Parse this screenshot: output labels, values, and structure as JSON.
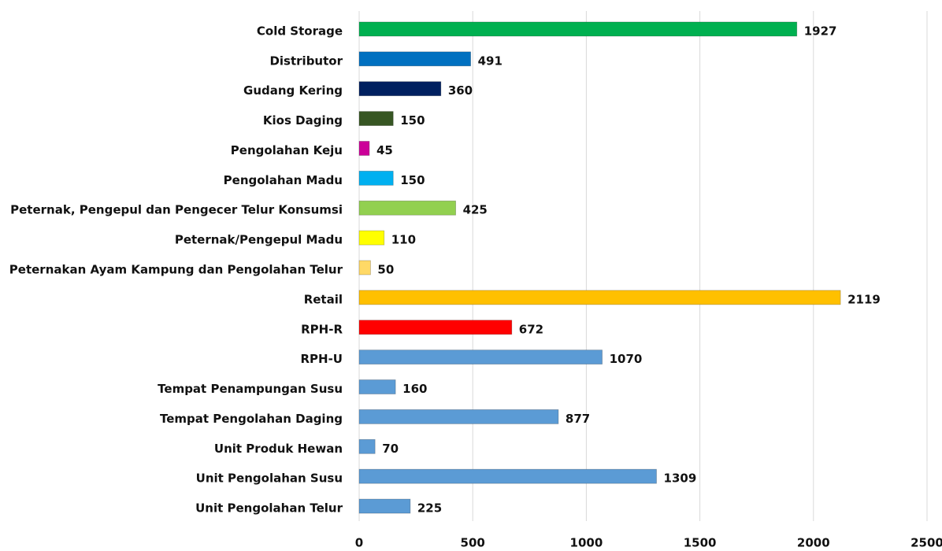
{
  "chart_data": {
    "type": "bar",
    "orientation": "horizontal",
    "categories": [
      "Cold Storage",
      "Distributor",
      "Gudang Kering",
      "Kios Daging",
      "Pengolahan Keju",
      "Pengolahan Madu",
      "Peternak, Pengepul dan Pengecer Telur Konsumsi",
      "Peternak/Pengepul Madu",
      "Peternakan Ayam Kampung dan Pengolahan Telur",
      "Retail",
      "RPH-R",
      "RPH-U",
      "Tempat Penampungan Susu",
      "Tempat Pengolahan Daging",
      "Unit Produk Hewan",
      "Unit Pengolahan Susu",
      "Unit Pengolahan Telur"
    ],
    "values": [
      1927,
      491,
      360,
      150,
      45,
      150,
      425,
      110,
      50,
      2119,
      672,
      1070,
      160,
      877,
      70,
      1309,
      225
    ],
    "colors": [
      "#00b050",
      "#0070c0",
      "#002060",
      "#375623",
      "#cc0099",
      "#00b0f0",
      "#92d050",
      "#ffff00",
      "#ffd966",
      "#ffc000",
      "#ff0000",
      "#5b9bd5",
      "#5b9bd5",
      "#5b9bd5",
      "#5b9bd5",
      "#5b9bd5",
      "#5b9bd5"
    ],
    "xlim": [
      0,
      2500
    ],
    "xticks": [
      0,
      500,
      1000,
      1500,
      2000,
      2500
    ],
    "grid": true
  }
}
